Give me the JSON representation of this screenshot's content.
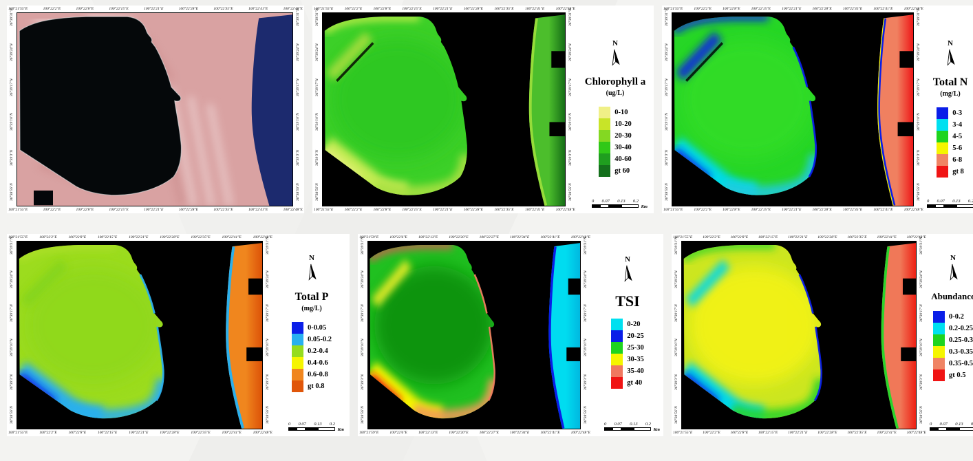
{
  "page": {
    "background": "#f3f3f1",
    "north_label": "N"
  },
  "coords": {
    "lon_a": [
      "100°21'55\"E",
      "100°22'2\"E",
      "100°22'8\"E",
      "100°22'15\"E",
      "100°22'21\"E",
      "100°22'28\"E",
      "100°22'35\"E",
      "100°22'41\"E",
      "100°22'48\"E"
    ],
    "lon_b": [
      "100°21'59\"E",
      "100°22'6\"E",
      "100°22'13\"E",
      "100°22'20\"E",
      "100°22'27\"E",
      "100°22'34\"E",
      "100°22'41\"E",
      "100°22'48\"E"
    ],
    "lat": [
      "36°39'31\"N",
      "36°39'24\"N",
      "36°39'17\"N",
      "36°39'10\"N",
      "36°39'3\"N",
      "36°38'56\"N"
    ]
  },
  "scalebar": {
    "ticks": [
      "0",
      "0.07",
      "0.13",
      "0.2"
    ],
    "unit": "Km"
  },
  "panels": [
    {
      "id": "satellite",
      "kind": "satellite",
      "title": "",
      "unit": "",
      "legend": [],
      "map_colors": {
        "land": "#d9a2a2",
        "land_light": "#efd6d6",
        "land_dark": "#c27f7f",
        "sea": "#1c2a6e",
        "water": "#05080a",
        "shoreline": "#e8eef0"
      }
    },
    {
      "id": "chlorophyll-a",
      "kind": "classified",
      "title": "Chlorophyll a",
      "unit": "(ug/L)",
      "legend": [
        {
          "label": "0-10",
          "color": "#f0f087"
        },
        {
          "label": "10-20",
          "color": "#c8e428"
        },
        {
          "label": "20-30",
          "color": "#84d822"
        },
        {
          "label": "30-40",
          "color": "#30c818"
        },
        {
          "label": "40-60",
          "color": "#1f9e1f"
        },
        {
          "label": "gt 60",
          "color": "#14701c"
        }
      ],
      "map_colors": {
        "base": "#3cd028",
        "center": "#2fc822",
        "top_rim": "#cdee4c",
        "nw_diagonal": "#aade40",
        "sw_band": "#c4ec52",
        "sw_corner": "#e6f07e",
        "bottom_band": "#a8e042",
        "strip_main": "#4cbe2c",
        "strip_edge": "#156e16",
        "strip_sliver": "#96dc3a",
        "strip_sliver_inner": "",
        "shoreline": "",
        "nw_dark": true
      }
    },
    {
      "id": "total-n",
      "kind": "classified",
      "title": "Total N",
      "unit": "(mg/L)",
      "legend": [
        {
          "label": "0-3",
          "color": "#0a1ee8"
        },
        {
          "label": "3-4",
          "color": "#00e0f0"
        },
        {
          "label": "4-5",
          "color": "#1ed41e"
        },
        {
          "label": "5-6",
          "color": "#f5f500"
        },
        {
          "label": "6-8",
          "color": "#f08464"
        },
        {
          "label": "gt 8",
          "color": "#f01414"
        }
      ],
      "map_colors": {
        "base": "#26d626",
        "center": "#33dc28",
        "top_rim": "#0a1ee8",
        "nw_diagonal": "#0a1ee8",
        "sw_band": "#00dce8",
        "sw_corner": "#0a1ee8",
        "bottom_band": "#22cadc",
        "strip_main": "#f08060",
        "strip_edge": "#ee1818",
        "strip_sliver": "#0a1ee8",
        "strip_sliver_inner": "#f5f500",
        "shoreline": "#0a1ee8",
        "nw_dark": true
      }
    },
    {
      "id": "total-p",
      "kind": "classified",
      "title": "Total P",
      "unit": "(mg/L)",
      "legend": [
        {
          "label": "0-0.05",
          "color": "#0a1ee8"
        },
        {
          "label": "0.05-0.2",
          "color": "#28b0f0"
        },
        {
          "label": "0.2-0.4",
          "color": "#96dc1e"
        },
        {
          "label": "0.4-0.6",
          "color": "#f5f500"
        },
        {
          "label": "0.6-0.8",
          "color": "#f0861e"
        },
        {
          "label": "gt 0.8",
          "color": "#e0560a"
        }
      ],
      "map_colors": {
        "base": "#9cdc1e",
        "center": "#90d81a",
        "top_rim": "#b0e02c",
        "nw_diagonal": "#84d41c",
        "sw_band": "#2cb0ec",
        "sw_corner": "#0a1ee8",
        "bottom_band": "#2cb0ec",
        "strip_main": "#f0861e",
        "strip_edge": "#dc5208",
        "strip_sliver": "#2cb0ec",
        "strip_sliver_inner": "",
        "shoreline": "#2cb0ec",
        "nw_dark": false
      }
    },
    {
      "id": "tsi",
      "kind": "classified",
      "title": "TSI",
      "unit": "",
      "legend": [
        {
          "label": "0-20",
          "color": "#00e0f0"
        },
        {
          "label": "20-25",
          "color": "#0a1ee8"
        },
        {
          "label": "25-30",
          "color": "#1ed41e"
        },
        {
          "label": "30-35",
          "color": "#f5f500"
        },
        {
          "label": "35-40",
          "color": "#f07860"
        },
        {
          "label": "gt 40",
          "color": "#f01414"
        }
      ],
      "map_colors": {
        "base": "#20c020",
        "center": "#109210",
        "top_rim": "#e05454",
        "nw_diagonal": "#f0ee2a",
        "sw_band": "#f5f500",
        "sw_corner": "#f01414",
        "bottom_band": "#f09a58",
        "strip_main": "#00dcf0",
        "strip_edge": "#00b8e0",
        "strip_sliver": "#0a1ee8",
        "strip_sliver_inner": "",
        "shoreline": "#f08060",
        "nw_dark": false
      }
    },
    {
      "id": "abundance",
      "kind": "classified",
      "title": "Abundance",
      "unit": "",
      "legend": [
        {
          "label": "0-0.2",
          "color": "#0a1ee8"
        },
        {
          "label": "0.2-0.25",
          "color": "#00e0f0"
        },
        {
          "label": "0.25-0.3",
          "color": "#1ed41e"
        },
        {
          "label": "0.3-0.35",
          "color": "#f5f500"
        },
        {
          "label": "0.35-0.5",
          "color": "#f08464"
        },
        {
          "label": "gt 0.5",
          "color": "#f01414"
        }
      ],
      "map_colors": {
        "base": "#cce620",
        "center": "#f2f218",
        "top_rim": "#2cd42c",
        "nw_diagonal": "#00d8e8",
        "sw_band": "#00d8e8",
        "sw_corner": "#0a1ee8",
        "bottom_band": "#2cd42c",
        "strip_main": "#f07858",
        "strip_edge": "#ee2014",
        "strip_sliver": "#2cd42c",
        "strip_sliver_inner": "",
        "shoreline": "#0a1ee8",
        "nw_dark": false
      }
    }
  ]
}
